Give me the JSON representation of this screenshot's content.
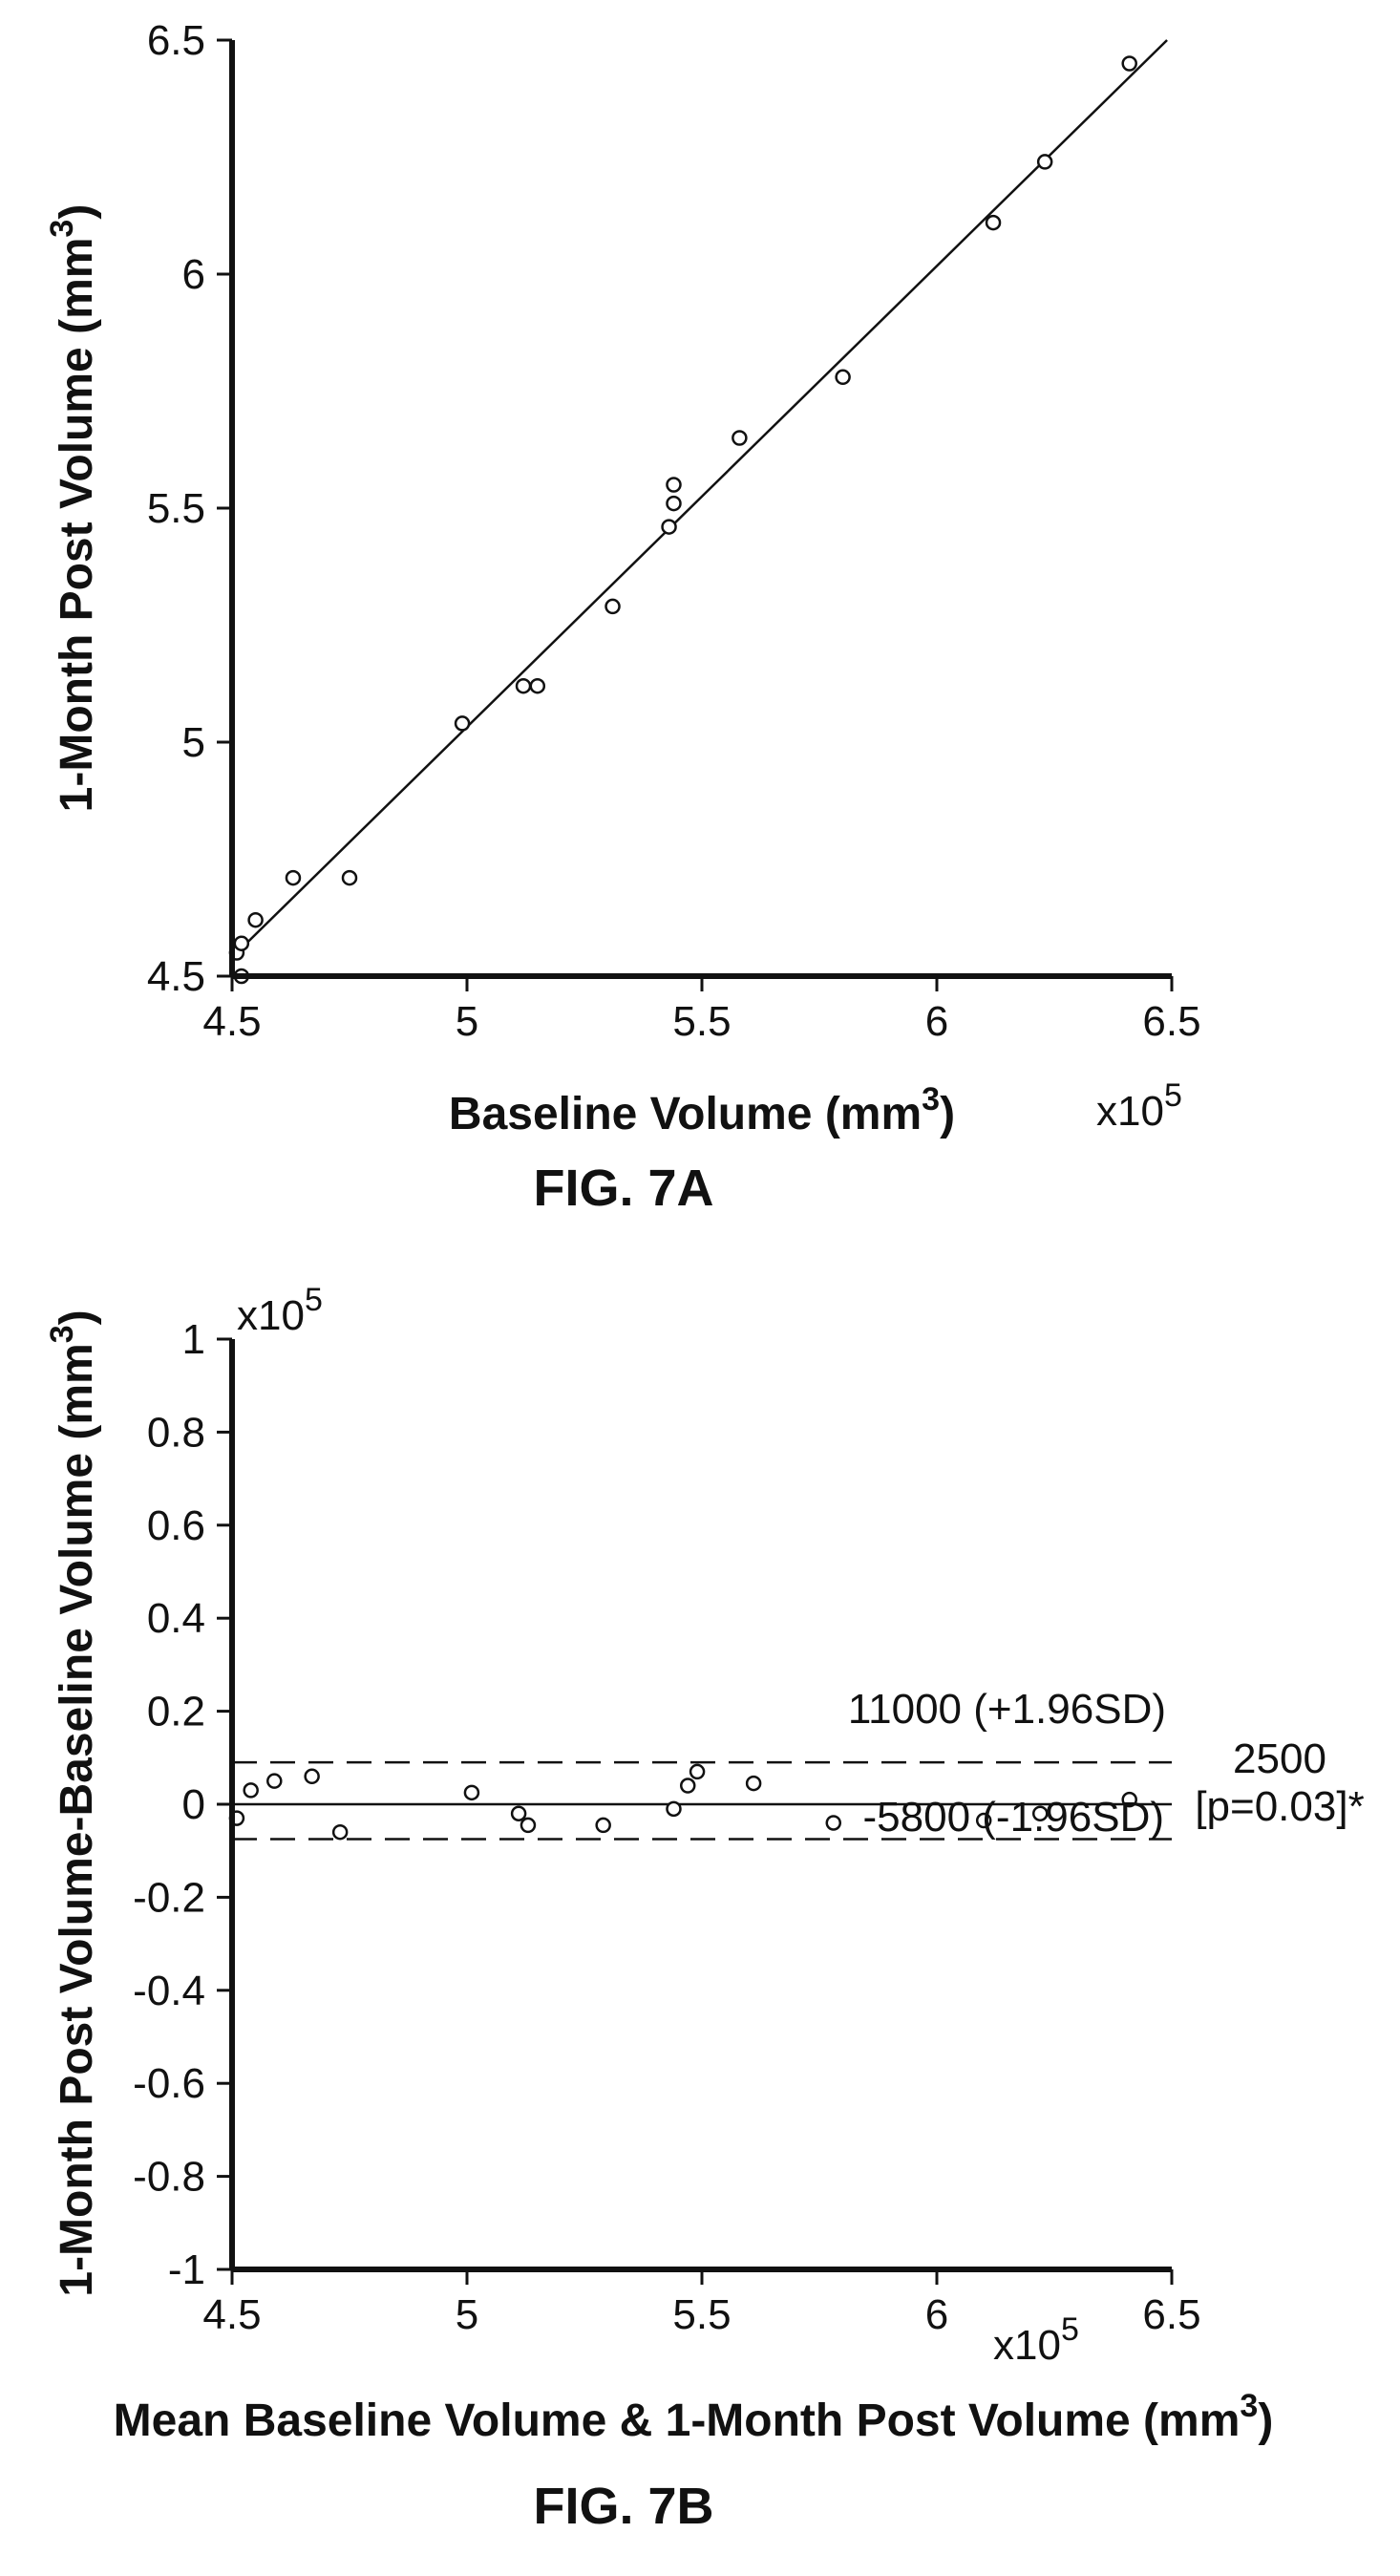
{
  "chart_data": [
    {
      "type": "scatter",
      "title": "",
      "caption": "FIG. 7A",
      "xlabel": "Baseline Volume (mm",
      "xlabel_sup": "3",
      "xlabel_close": ")",
      "ylabel": "1-Month Post Volume (mm",
      "ylabel_sup": "3",
      "ylabel_close": ")",
      "xlim": [
        4.5,
        6.5
      ],
      "ylim": [
        4.5,
        6.5
      ],
      "x_multiplier_base": "x10",
      "x_multiplier_exp": "5",
      "xticks": [
        "4.5",
        "5",
        "5.5",
        "6",
        "6.5"
      ],
      "yticks": [
        "4.5",
        "5",
        "5.5",
        "6",
        "6.5"
      ],
      "grid": false,
      "regression_line": {
        "x": [
          4.5,
          6.49
        ],
        "y": [
          4.54,
          6.5
        ]
      },
      "points": [
        [
          4.51,
          4.55
        ],
        [
          4.52,
          4.57
        ],
        [
          4.52,
          4.5
        ],
        [
          4.55,
          4.62
        ],
        [
          4.63,
          4.71
        ],
        [
          4.75,
          4.71
        ],
        [
          4.99,
          5.04
        ],
        [
          5.12,
          5.12
        ],
        [
          5.15,
          5.12
        ],
        [
          5.31,
          5.29
        ],
        [
          5.43,
          5.46
        ],
        [
          5.44,
          5.51
        ],
        [
          5.44,
          5.55
        ],
        [
          5.58,
          5.65
        ],
        [
          5.8,
          5.78
        ],
        [
          6.12,
          6.11
        ],
        [
          6.23,
          6.24
        ],
        [
          6.41,
          6.45
        ]
      ]
    },
    {
      "type": "scatter",
      "title": "",
      "caption": "FIG. 7B",
      "xlabel": "Mean Baseline Volume & 1-Month Post Volume (mm",
      "xlabel_sup": "3",
      "xlabel_close": ")",
      "ylabel": "1-Month Post Volume-Baseline Volume (mm",
      "ylabel_sup": "3",
      "ylabel_close": ")",
      "xlim": [
        4.5,
        6.5
      ],
      "ylim": [
        -1,
        1
      ],
      "x_multiplier_base": "x10",
      "x_multiplier_exp": "5",
      "y_multiplier_base": "x10",
      "y_multiplier_exp": "5",
      "xticks": [
        "4.5",
        "5",
        "5.5",
        "6",
        "6.5"
      ],
      "yticks": [
        "-1",
        "-0.8",
        "-0.6",
        "-0.4",
        "-0.2",
        "0",
        "0.2",
        "0.4",
        "0.6",
        "0.8",
        "1"
      ],
      "grid": false,
      "mean_line": 0.0,
      "upper_limit": 0.09,
      "lower_limit": -0.075,
      "annotations": {
        "upper": "11000 (+1.96SD)",
        "lower": "-5800 (-1.96SD)",
        "mean": "2500",
        "p_value": "[p=0.03]*"
      },
      "points": [
        [
          4.51,
          -0.03
        ],
        [
          4.54,
          0.03
        ],
        [
          4.59,
          0.05
        ],
        [
          4.67,
          0.06
        ],
        [
          4.73,
          -0.06
        ],
        [
          5.01,
          0.025
        ],
        [
          5.11,
          -0.02
        ],
        [
          5.13,
          -0.045
        ],
        [
          5.29,
          -0.045
        ],
        [
          5.44,
          -0.01
        ],
        [
          5.47,
          0.04
        ],
        [
          5.49,
          0.07
        ],
        [
          5.61,
          0.045
        ],
        [
          5.78,
          -0.04
        ],
        [
          6.1,
          -0.035
        ],
        [
          6.22,
          -0.02
        ],
        [
          6.41,
          0.01
        ]
      ]
    }
  ]
}
